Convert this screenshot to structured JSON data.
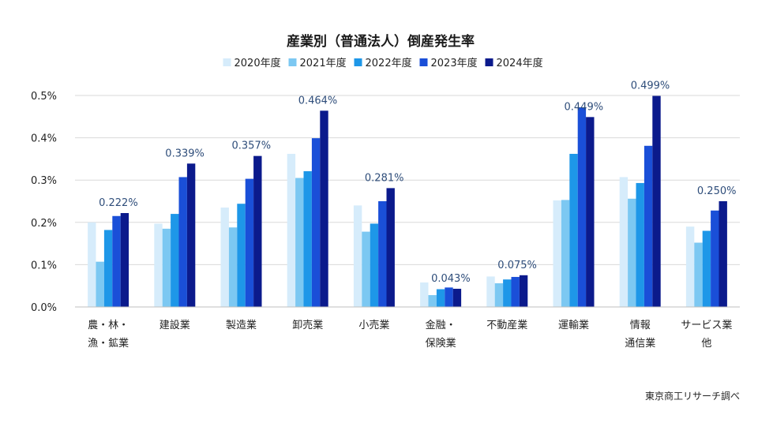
{
  "chart_data": {
    "type": "bar",
    "title": "産業別（普通法人）倒産発生率",
    "categories": [
      [
        "農・林・",
        "漁・鉱業"
      ],
      [
        "建設業"
      ],
      [
        "製造業"
      ],
      [
        "卸売業"
      ],
      [
        "小売業"
      ],
      [
        "金融・",
        "保険業"
      ],
      [
        "不動産業"
      ],
      [
        "運輸業"
      ],
      [
        "情報",
        "通信業"
      ],
      [
        "サービス業",
        "他"
      ]
    ],
    "series": [
      {
        "name": "2020年度",
        "color": "#d6ecfb",
        "values": [
          0.2,
          0.197,
          0.235,
          0.362,
          0.24,
          0.058,
          0.072,
          0.252,
          0.307,
          0.19
        ]
      },
      {
        "name": "2021年度",
        "color": "#7cc8f2",
        "values": [
          0.107,
          0.185,
          0.188,
          0.305,
          0.178,
          0.028,
          0.056,
          0.253,
          0.256,
          0.152
        ]
      },
      {
        "name": "2022年度",
        "color": "#1e97e8",
        "values": [
          0.182,
          0.22,
          0.244,
          0.321,
          0.197,
          0.042,
          0.065,
          0.362,
          0.293,
          0.18
        ]
      },
      {
        "name": "2023年度",
        "color": "#1a4fd8",
        "values": [
          0.215,
          0.307,
          0.303,
          0.399,
          0.25,
          0.046,
          0.071,
          0.472,
          0.381,
          0.228
        ]
      },
      {
        "name": "2024年度",
        "color": "#0b1a8c",
        "values": [
          0.222,
          0.339,
          0.357,
          0.464,
          0.281,
          0.043,
          0.075,
          0.449,
          0.499,
          0.25
        ]
      }
    ],
    "data_labels": [
      "0.222%",
      "0.339%",
      "0.357%",
      "0.464%",
      "0.281%",
      "0.043%",
      "0.075%",
      "0.449%",
      "0.499%",
      "0.250%"
    ],
    "y_ticks": [
      "0.0%",
      "0.1%",
      "0.2%",
      "0.3%",
      "0.4%",
      "0.5%"
    ],
    "ylim": [
      0,
      0.5
    ],
    "grid": true,
    "legend_placement": "top-center",
    "source": "東京商工リサーチ調べ"
  }
}
